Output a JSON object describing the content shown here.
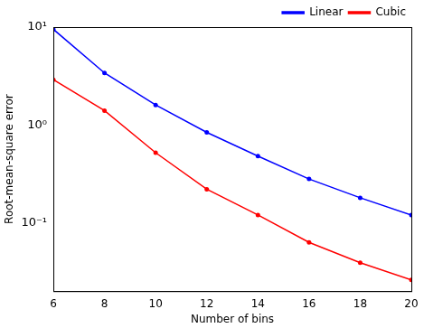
{
  "chart_data": {
    "type": "line",
    "x_label": "Number of bins",
    "y_label": "Root-mean-square error",
    "x": [
      6,
      8,
      10,
      12,
      14,
      16,
      18,
      20
    ],
    "series": [
      {
        "name": "Linear",
        "color": "#0000ff",
        "marker": "circle",
        "values": [
          9.5,
          3.4,
          1.6,
          0.84,
          0.48,
          0.28,
          0.18,
          0.12
        ]
      },
      {
        "name": "Cubic",
        "color": "#ff0000",
        "marker": "circle",
        "values": [
          2.9,
          1.4,
          0.52,
          0.22,
          0.12,
          0.063,
          0.039,
          0.026
        ]
      }
    ],
    "xlim": [
      6,
      20
    ],
    "xticks": [
      6,
      8,
      10,
      12,
      14,
      16,
      18,
      20
    ],
    "ylim": [
      0.02,
      10
    ],
    "yticks": [
      {
        "value": 0.1,
        "label": "10⁻¹"
      },
      {
        "value": 1,
        "label": "10⁰"
      },
      {
        "value": 10,
        "label": "10¹"
      }
    ],
    "log": "y",
    "grid": false,
    "legend": "northeast"
  }
}
